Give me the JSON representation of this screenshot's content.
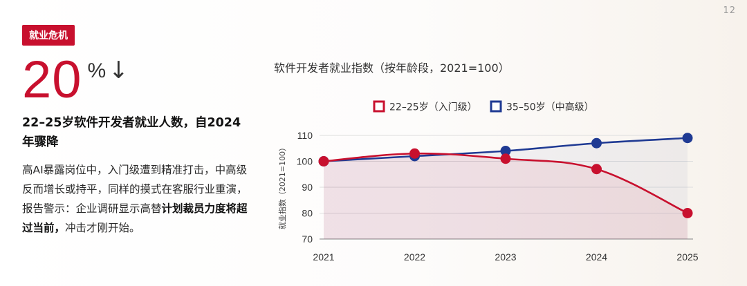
{
  "page_number": "12",
  "tag": "就业危机",
  "stat": {
    "value": "20",
    "unit": "%",
    "arrow": "↓"
  },
  "headline": "22–25岁软件开发者就业人数，自2024年骤降",
  "body": {
    "part1": "高AI暴露岗位中，入门级遭到精准打击，中高级反而增长或持平，同样的摸式在客服行业重演，报告警示：企业调研显示高替",
    "bold": "计划裁员力度将超过当前，",
    "part2": "冲击才刚开始。"
  },
  "colors": {
    "accent": "#c8102e",
    "series_blue": "#1f3a93"
  },
  "chart_data": {
    "type": "line",
    "title": "软件开发者就业指数（按年龄段，2021=100）",
    "ylabel": "就业指数（2021=100）",
    "xlabel": "",
    "x": [
      2021,
      2022,
      2023,
      2024,
      2025
    ],
    "ylim": [
      70,
      110
    ],
    "yticks": [
      70,
      80,
      90,
      100,
      110
    ],
    "grid": true,
    "legend": "top",
    "series": [
      {
        "name": "22–25岁（入门级）",
        "values": [
          100,
          103,
          101,
          97,
          80
        ],
        "color": "#c8102e"
      },
      {
        "name": "35–50岁（中高级）",
        "values": [
          100,
          102,
          104,
          107,
          109
        ],
        "color": "#1f3a93"
      }
    ]
  }
}
